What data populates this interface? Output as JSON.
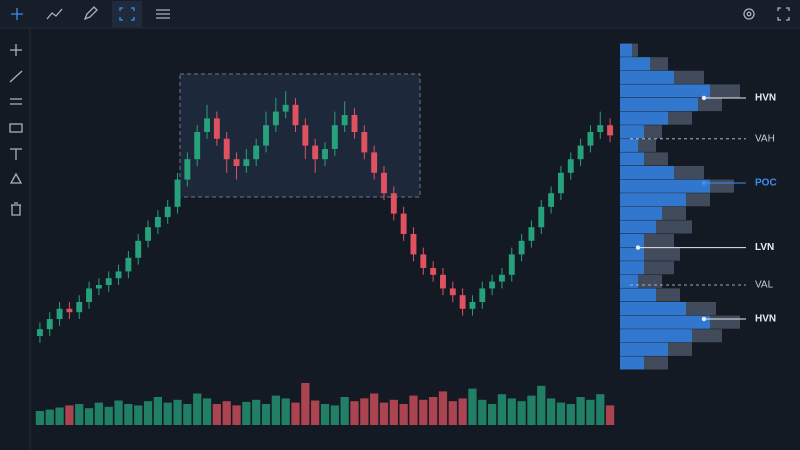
{
  "chart_data": {
    "type": "candlestick",
    "ylim": [
      0,
      100
    ],
    "ohlc": [
      [
        10,
        14,
        8,
        12
      ],
      [
        12,
        17,
        10,
        15
      ],
      [
        15,
        20,
        13,
        18
      ],
      [
        18,
        20,
        15,
        17
      ],
      [
        17,
        22,
        15,
        20
      ],
      [
        20,
        26,
        18,
        24
      ],
      [
        24,
        27,
        22,
        25
      ],
      [
        25,
        29,
        23,
        27
      ],
      [
        27,
        31,
        25,
        29
      ],
      [
        29,
        35,
        27,
        33
      ],
      [
        33,
        40,
        31,
        38
      ],
      [
        38,
        44,
        36,
        42
      ],
      [
        42,
        47,
        40,
        45
      ],
      [
        45,
        50,
        43,
        48
      ],
      [
        48,
        58,
        46,
        56
      ],
      [
        56,
        64,
        54,
        62
      ],
      [
        62,
        72,
        60,
        70
      ],
      [
        70,
        78,
        68,
        74
      ],
      [
        74,
        76,
        66,
        68
      ],
      [
        68,
        70,
        58,
        62
      ],
      [
        62,
        64,
        56,
        60
      ],
      [
        60,
        65,
        58,
        62
      ],
      [
        62,
        68,
        60,
        66
      ],
      [
        66,
        76,
        64,
        72
      ],
      [
        72,
        80,
        70,
        76
      ],
      [
        76,
        82,
        74,
        78
      ],
      [
        78,
        80,
        70,
        72
      ],
      [
        72,
        74,
        62,
        66
      ],
      [
        66,
        68,
        58,
        62
      ],
      [
        62,
        67,
        60,
        65
      ],
      [
        65,
        76,
        63,
        72
      ],
      [
        72,
        79,
        70,
        75
      ],
      [
        75,
        77,
        68,
        70
      ],
      [
        70,
        72,
        62,
        64
      ],
      [
        64,
        66,
        56,
        58
      ],
      [
        58,
        60,
        50,
        52
      ],
      [
        52,
        54,
        44,
        46
      ],
      [
        46,
        48,
        38,
        40
      ],
      [
        40,
        42,
        32,
        34
      ],
      [
        34,
        36,
        28,
        30
      ],
      [
        30,
        32,
        26,
        28
      ],
      [
        28,
        30,
        22,
        24
      ],
      [
        24,
        26,
        20,
        22
      ],
      [
        22,
        24,
        16,
        18
      ],
      [
        18,
        22,
        16,
        20
      ],
      [
        20,
        26,
        18,
        24
      ],
      [
        24,
        28,
        22,
        26
      ],
      [
        26,
        30,
        24,
        28
      ],
      [
        28,
        36,
        26,
        34
      ],
      [
        34,
        40,
        32,
        38
      ],
      [
        38,
        44,
        36,
        42
      ],
      [
        42,
        50,
        40,
        48
      ],
      [
        48,
        54,
        46,
        52
      ],
      [
        52,
        60,
        50,
        58
      ],
      [
        58,
        64,
        56,
        62
      ],
      [
        62,
        68,
        60,
        66
      ],
      [
        66,
        72,
        64,
        70
      ],
      [
        70,
        76,
        68,
        72
      ],
      [
        72,
        74,
        67,
        69
      ]
    ],
    "up_color": "#26a17b",
    "down_color": "#e05260",
    "volume": {
      "ylim": [
        0,
        100
      ],
      "values": [
        20,
        22,
        25,
        28,
        30,
        24,
        32,
        26,
        35,
        30,
        28,
        34,
        40,
        32,
        36,
        30,
        45,
        38,
        30,
        34,
        28,
        33,
        36,
        30,
        42,
        38,
        32,
        60,
        35,
        30,
        28,
        40,
        34,
        38,
        45,
        32,
        36,
        30,
        42,
        36,
        40,
        48,
        34,
        38,
        52,
        36,
        30,
        44,
        38,
        34,
        42,
        56,
        38,
        32,
        30,
        40,
        36,
        44,
        28
      ]
    },
    "profile": {
      "xlim": [
        0,
        100
      ],
      "bins": [
        0,
        4,
        8,
        12,
        16,
        20,
        24,
        28,
        32,
        36,
        40,
        44,
        48,
        52,
        56,
        60,
        64,
        68,
        72,
        76,
        80,
        84,
        88,
        92,
        96
      ],
      "total": [
        40,
        60,
        85,
        100,
        80,
        50,
        35,
        45,
        50,
        45,
        60,
        55,
        75,
        95,
        70,
        40,
        30,
        35,
        60,
        85,
        100,
        70,
        40,
        15
      ],
      "value_area": [
        20,
        40,
        60,
        75,
        55,
        30,
        15,
        20,
        20,
        20,
        30,
        35,
        55,
        75,
        45,
        20,
        15,
        20,
        40,
        65,
        75,
        45,
        25,
        10
      ],
      "total_color": "#4a5566",
      "value_area_color": "#2f7fe0"
    },
    "markers": [
      {
        "label": "HVN",
        "price": 80,
        "style": "solid",
        "color": "#e8ecf2"
      },
      {
        "label": "VAH",
        "price": 68,
        "style": "dashed",
        "color": "#c8ced8"
      },
      {
        "label": "POC",
        "price": 55,
        "style": "solid",
        "color": "#3b8ff0"
      },
      {
        "label": "LVN",
        "price": 36,
        "style": "solid",
        "color": "#e8ecf2"
      },
      {
        "label": "VAL",
        "price": 25,
        "style": "dashed",
        "color": "#c8ced8"
      },
      {
        "label": "HVN",
        "price": 15,
        "style": "solid",
        "color": "#e8ecf2"
      }
    ]
  }
}
